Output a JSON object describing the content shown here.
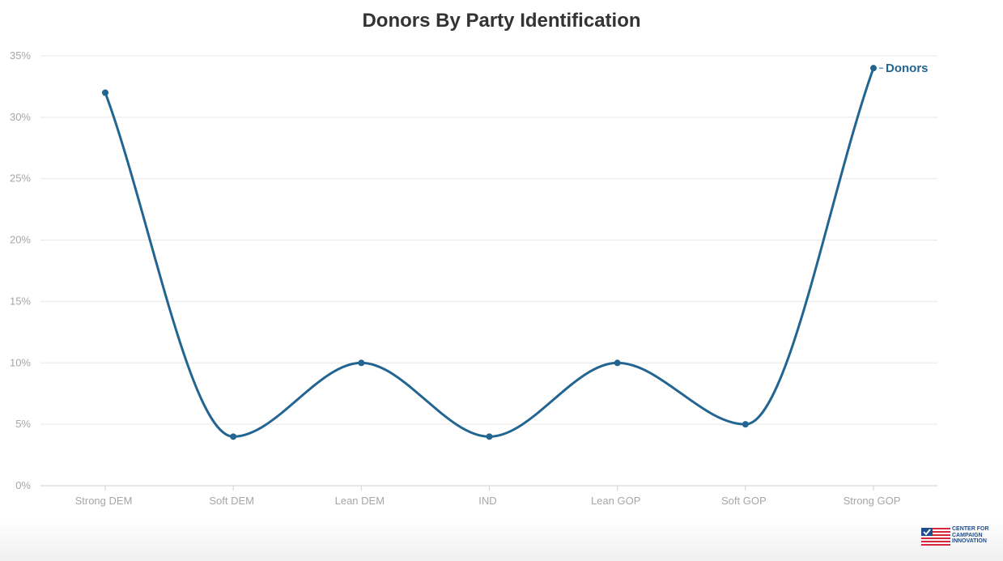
{
  "chart_data": {
    "type": "line",
    "title": "Donors By Party Identification",
    "categories": [
      "Strong DEM",
      "Soft DEM",
      "Lean DEM",
      "IND",
      "Lean GOP",
      "Soft GOP",
      "Strong GOP"
    ],
    "series": [
      {
        "name": "Donors",
        "values": [
          32,
          4,
          10,
          4,
          10,
          5,
          34
        ],
        "color": "#236591"
      }
    ],
    "y_ticks": [
      "0%",
      "5%",
      "10%",
      "15%",
      "20%",
      "25%",
      "30%",
      "35%"
    ],
    "ylim": [
      0,
      35
    ],
    "grid": true,
    "curve": "smooth",
    "legend": "label at end of series"
  },
  "logo": {
    "lines": [
      "CENTER FOR",
      "CAMPAIGN",
      "INNOVATION"
    ],
    "colors": {
      "blue": "#1f4e8c",
      "red": "#d7263d"
    }
  }
}
